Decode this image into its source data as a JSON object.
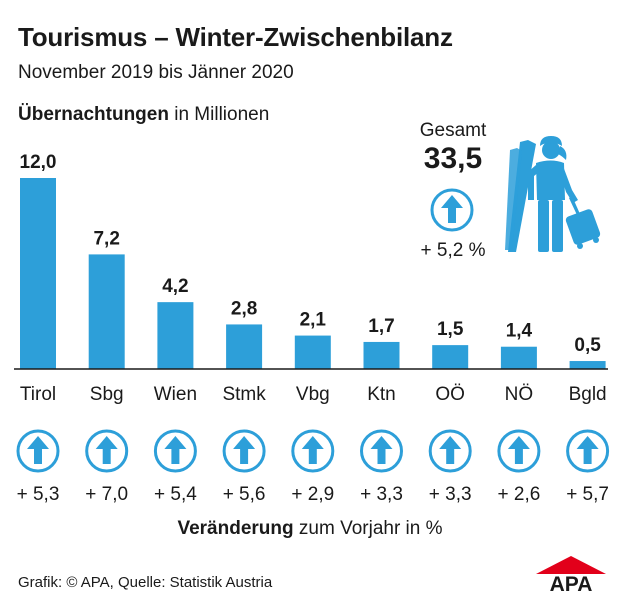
{
  "header": {
    "title": "Tourismus – Winter-Zwischenbilanz",
    "subtitle": "November 2019 bis Jänner 2020",
    "ylabel_bold": "Übernachtungen",
    "ylabel_rest": " in Millionen"
  },
  "total": {
    "label": "Gesamt",
    "value": "33,5",
    "change": "+ 5,2 %",
    "icon": "arrow-up-circle-icon"
  },
  "change_caption": {
    "bold": "Veränderung",
    "rest": " zum Vorjahr in %"
  },
  "footer": {
    "source": "Grafik: © APA, Quelle: Statistik Austria",
    "logo_text": "APA"
  },
  "colors": {
    "bar": "#2d9fd9",
    "arrow": "#2d9fd9",
    "text": "#1a1a1a",
    "logo_red": "#e2001a"
  },
  "chart_data": {
    "type": "bar",
    "categories": [
      "Tirol",
      "Sbg",
      "Wien",
      "Stmk",
      "Vbg",
      "Ktn",
      "OÖ",
      "NÖ",
      "Bgld"
    ],
    "values": [
      12.0,
      7.2,
      4.2,
      2.8,
      2.1,
      1.7,
      1.5,
      1.4,
      0.5
    ],
    "value_labels": [
      "12,0",
      "7,2",
      "4,2",
      "2,8",
      "2,1",
      "1,7",
      "1,5",
      "1,4",
      "0,5"
    ],
    "changes": [
      5.3,
      7.0,
      5.4,
      5.6,
      2.9,
      3.3,
      3.3,
      2.6,
      5.7
    ],
    "change_labels": [
      "+ 5,3",
      "+ 7,0",
      "+ 5,4",
      "+ 5,6",
      "+ 2,9",
      "+ 3,3",
      "+ 3,3",
      "+ 2,6",
      "+ 5,7"
    ],
    "ylim": [
      0,
      12
    ],
    "grid": false,
    "legend": "none"
  }
}
